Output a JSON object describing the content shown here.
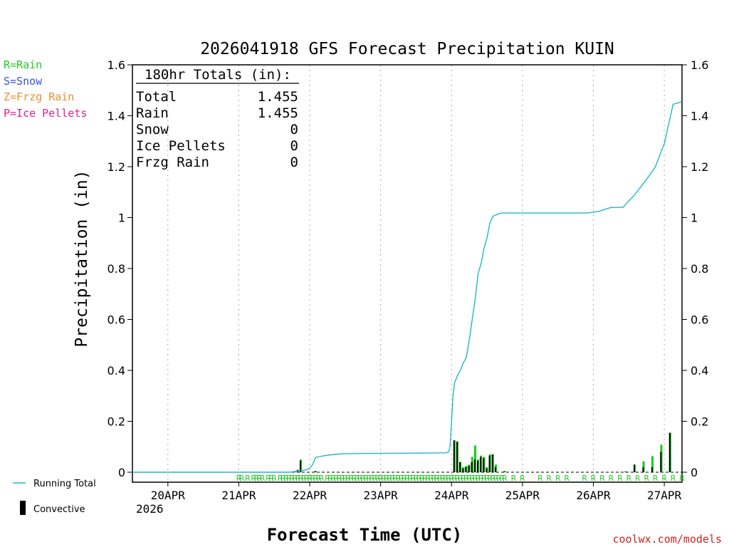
{
  "chart_data": {
    "type": "bar",
    "title": "2026041918 GFS Forecast Precipitation KUIN",
    "xlabel": "Forecast Time (UTC)",
    "ylabel": "Precipitation (in)",
    "ylim": [
      0,
      1.6
    ],
    "xlim_hours": [
      -6,
      180
    ],
    "y_ticks": [
      "0",
      "0.2",
      "0.4",
      "0.6",
      "0.8",
      "1",
      "1.2",
      "1.4",
      "1.6"
    ],
    "x_ticks": [
      {
        "label": "20APR",
        "hour": 6
      },
      {
        "label": "21APR",
        "hour": 30
      },
      {
        "label": "22APR",
        "hour": 54
      },
      {
        "label": "23APR",
        "hour": 78
      },
      {
        "label": "24APR",
        "hour": 102
      },
      {
        "label": "25APR",
        "hour": 126
      },
      {
        "label": "26APR",
        "hour": 150
      },
      {
        "label": "27APR",
        "hour": 174
      }
    ],
    "year_label": "2026",
    "legend_types": [
      {
        "text": "R=Rain",
        "color": "#22cc22"
      },
      {
        "text": "S=Snow",
        "color": "#3355dd"
      },
      {
        "text": "Z=Frzg Rain",
        "color": "#f08c30"
      },
      {
        "text": "P=Ice Pellets",
        "color": "#e0208c"
      }
    ],
    "legend_series": {
      "running_total": "Running Total",
      "convective": "Convective"
    },
    "totals_box": {
      "header": "180hr Totals (in):",
      "rows": [
        {
          "label": "Total",
          "value": "1.455"
        },
        {
          "label": "Rain",
          "value": "1.455"
        },
        {
          "label": "Snow",
          "value": "0"
        },
        {
          "label": "Ice Pellets",
          "value": "0"
        },
        {
          "label": "Frzg Rain",
          "value": "0"
        }
      ]
    },
    "running_total": {
      "name": "Running Total",
      "color": "#20b8c8",
      "hours": [
        -6,
        46,
        47,
        48,
        48.5,
        49,
        50,
        51,
        53,
        54,
        55,
        56,
        57,
        58,
        59,
        62,
        66,
        90,
        100,
        101,
        101.5,
        102,
        102.5,
        103,
        104,
        105,
        106,
        107,
        108,
        109,
        110,
        111,
        112,
        113,
        114,
        115,
        116,
        117,
        118,
        119,
        120,
        121,
        122,
        123,
        125,
        148,
        152,
        156,
        160,
        164,
        168,
        171,
        174,
        177,
        180
      ],
      "values": [
        0,
        0,
        0,
        0.001,
        0.002,
        0.003,
        0.004,
        0.005,
        0.01,
        0.015,
        0.03,
        0.058,
        0.06,
        0.063,
        0.065,
        0.07,
        0.073,
        0.075,
        0.076,
        0.08,
        0.1,
        0.2,
        0.3,
        0.35,
        0.38,
        0.4,
        0.43,
        0.45,
        0.52,
        0.6,
        0.68,
        0.78,
        0.82,
        0.88,
        0.92,
        0.98,
        1.005,
        1.01,
        1.015,
        1.018,
        1.018,
        1.018,
        1.018,
        1.018,
        1.018,
        1.018,
        1.025,
        1.04,
        1.04,
        1.09,
        1.15,
        1.2,
        1.29,
        1.445,
        1.455
      ]
    },
    "bars": {
      "hours": [
        49,
        50,
        51,
        56,
        103,
        104,
        105,
        106,
        107,
        108,
        109,
        110,
        111,
        112,
        113,
        114,
        115,
        116,
        117,
        120,
        161,
        164,
        167,
        170,
        173,
        176
      ],
      "total": [
        0.003,
        0.01,
        0.05,
        0.005,
        0.125,
        0.12,
        0.04,
        0.02,
        0.025,
        0.03,
        0.06,
        0.105,
        0.05,
        0.065,
        0.06,
        0.02,
        0.07,
        0.07,
        0.03,
        0.005,
        0.003,
        0.03,
        0.043,
        0.063,
        0.108,
        0.155
      ],
      "convective": [
        0.002,
        0.008,
        0.045,
        0.004,
        0.125,
        0.12,
        0.04,
        0.015,
        0.02,
        0.025,
        0.04,
        0.05,
        0.045,
        0.06,
        0.055,
        0.015,
        0.065,
        0.07,
        0.02,
        0.003,
        0.003,
        0.03,
        0.02,
        0.02,
        0.08,
        0.155
      ],
      "precip_color": "#22cc22",
      "convective_color": "#000000"
    },
    "type_markers": {
      "letter": "R",
      "color": "#22cc22",
      "hours": [
        30,
        31,
        33,
        35,
        36,
        37,
        38,
        40,
        41,
        42,
        44,
        45,
        46,
        47,
        48,
        49,
        50,
        51,
        52,
        53,
        54,
        55,
        56,
        57,
        58,
        60,
        61,
        62,
        63,
        64,
        65,
        66,
        67,
        68,
        69,
        70,
        71,
        72,
        73,
        74,
        75,
        76,
        77,
        78,
        79,
        80,
        81,
        82,
        83,
        84,
        85,
        86,
        87,
        88,
        89,
        90,
        91,
        92,
        93,
        94,
        95,
        96,
        97,
        98,
        99,
        100,
        101,
        102,
        103,
        104,
        105,
        106,
        107,
        108,
        109,
        110,
        111,
        112,
        113,
        114,
        115,
        116,
        117,
        118,
        119,
        120,
        123,
        126,
        132,
        135,
        138,
        141,
        147,
        150,
        153,
        156,
        159,
        162,
        165,
        168,
        171,
        174,
        177,
        180
      ]
    }
  },
  "footer": {
    "credit": "coolwx.com/models"
  }
}
